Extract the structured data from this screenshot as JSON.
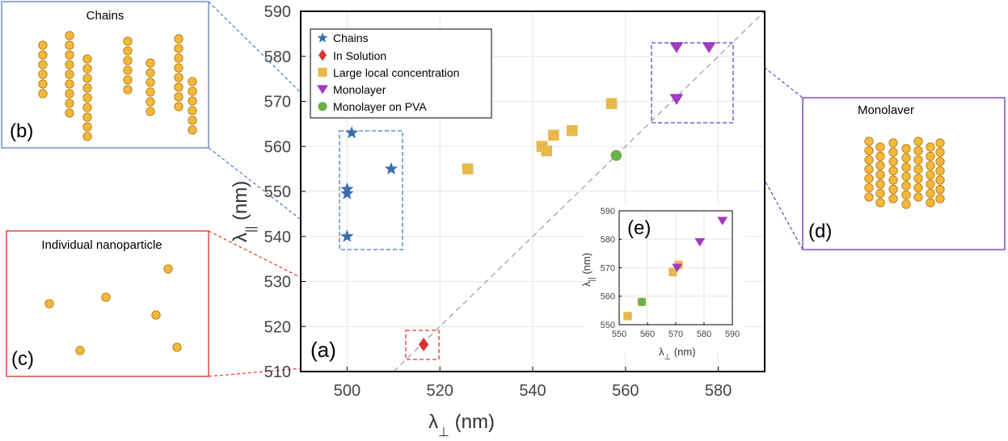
{
  "main_plot": {
    "panel_label": "(a)",
    "xlabel_symbol": "λ",
    "xlabel_sub": "⊥",
    "xlabel_unit": " (nm)",
    "ylabel_symbol": "λ",
    "ylabel_sub": "||",
    "ylabel_unit": " (nm)",
    "legend": [
      "Chains",
      "In Solution",
      "Large local concentration",
      "Monolayer",
      "Monolayer on PVA"
    ]
  },
  "inset": {
    "panel_label": "(e)",
    "xlabel_symbol": "λ",
    "xlabel_sub": "⊥",
    "xlabel_unit": " (nm)",
    "ylabel_symbol": "λ",
    "ylabel_sub": "||",
    "ylabel_unit": " (nm)"
  },
  "panels": {
    "chains": {
      "title": "Chains",
      "label": "(b)"
    },
    "individual": {
      "title": "Individual nanoparticle",
      "label": "(c)"
    },
    "monolayer": {
      "title": "Monolaver",
      "label": "(d)"
    }
  },
  "colors": {
    "chains": "#3a6fb0",
    "solution": "#d9342b",
    "large": "#e9b84a",
    "monolayer": "#a23bc2",
    "pva": "#6ab04c",
    "particle_fill": "#f4b93c",
    "particle_stroke": "#b07a10",
    "chains_box": "#4a78c0",
    "individual_box": "#e83a2e",
    "monolayer_box": "#6b3fc0"
  },
  "chart_data": [
    {
      "type": "scatter",
      "xlim": [
        490,
        590
      ],
      "ylim": [
        510,
        590
      ],
      "xticks": [
        500,
        520,
        540,
        560,
        580
      ],
      "yticks": [
        510,
        520,
        530,
        540,
        550,
        560,
        570,
        580,
        590
      ],
      "grid": true,
      "diagonal": "y = x",
      "legend_position": "top-left",
      "series": [
        {
          "name": "Chains",
          "marker": "star",
          "x": [
            500,
            501,
            500,
            500,
            509.5
          ],
          "y": [
            540,
            563,
            550.5,
            549.5,
            555
          ]
        },
        {
          "name": "In Solution",
          "marker": "diamond",
          "x": [
            516.5
          ],
          "y": [
            516
          ]
        },
        {
          "name": "Large local concentration",
          "marker": "square",
          "x": [
            526,
            542,
            543,
            544.5,
            548.5,
            557
          ],
          "y": [
            555,
            560,
            559,
            562.5,
            563.5,
            569.5
          ]
        },
        {
          "name": "Monolayer",
          "marker": "triangle-down",
          "x": [
            571,
            578,
            571
          ],
          "y": [
            582,
            582,
            570.5
          ]
        },
        {
          "name": "Monolayer on PVA",
          "marker": "circle",
          "x": [
            558
          ],
          "y": [
            558
          ]
        }
      ]
    },
    {
      "type": "scatter",
      "xlim": [
        550,
        590
      ],
      "ylim": [
        550,
        590
      ],
      "xticks": [
        550,
        560,
        570,
        580,
        590
      ],
      "yticks": [
        550,
        560,
        570,
        580,
        590
      ],
      "grid": true,
      "series": [
        {
          "name": "Large local concentration",
          "marker": "square",
          "x": [
            553,
            558,
            569,
            571
          ],
          "y": [
            553,
            558,
            568.5,
            571
          ]
        },
        {
          "name": "Monolayer",
          "marker": "triangle-down",
          "x": [
            570.5,
            578.5,
            586.5
          ],
          "y": [
            570,
            579,
            586.5
          ]
        },
        {
          "name": "Monolayer on PVA",
          "marker": "circle",
          "x": [
            558
          ],
          "y": [
            558
          ]
        }
      ]
    }
  ]
}
